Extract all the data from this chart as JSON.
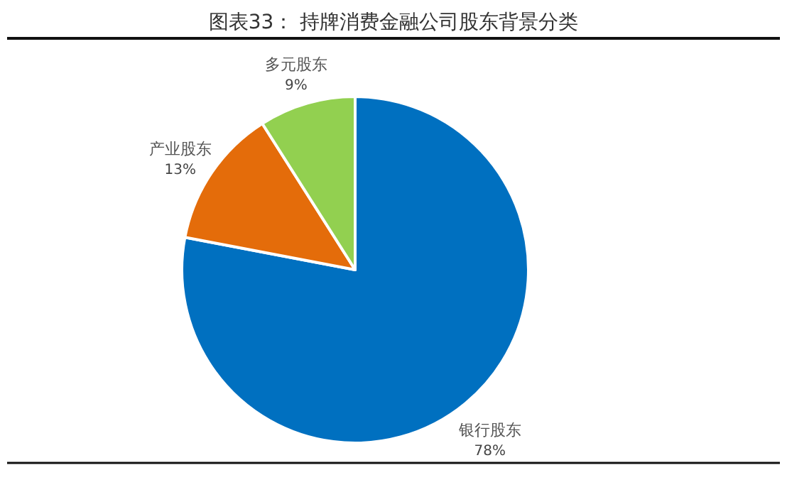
{
  "chart_data": {
    "type": "pie",
    "title": "图表33：      持牌消费金融公司股东背景分类",
    "categories": [
      "银行股东",
      "产业股东",
      "多元股东"
    ],
    "values": [
      78,
      13,
      9
    ],
    "value_labels": [
      "78%",
      "13%",
      "9%"
    ],
    "colors": [
      "#0070c0",
      "#e46c0a",
      "#92d050"
    ]
  }
}
